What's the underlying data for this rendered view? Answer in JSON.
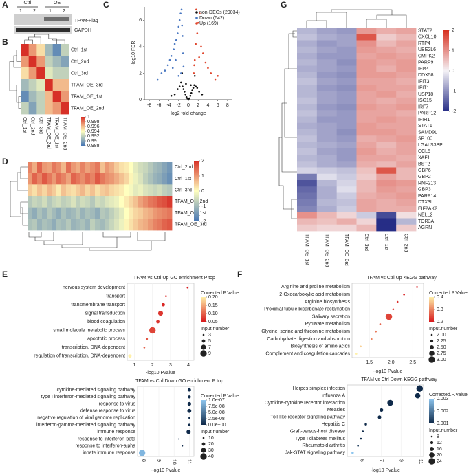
{
  "panel_labels": [
    "A",
    "B",
    "C",
    "D",
    "E",
    "F",
    "G"
  ],
  "blot": {
    "groups": [
      "Ctrl",
      "OE"
    ],
    "lanes": [
      "1",
      "2",
      "1",
      "2"
    ],
    "bands": [
      "TFAM-Flag",
      "GAPDH"
    ]
  },
  "chart_data": [
    {
      "type": "heatmap",
      "rows": [
        "Ctrl_1st",
        "Ctrl_2nd",
        "Ctrl_3rd",
        "TFAM_OE_3rd",
        "TFAM_OE_1st",
        "TFAM_OE_2nd"
      ],
      "columns": [
        "Ctrl_1st",
        "Ctrl_2nd",
        "Ctrl_3rd",
        "TFAM_OE_3rd",
        "TFAM_OE_1st",
        "TFAM_OE_2nd"
      ],
      "values": [
        [
          1,
          0.997,
          0.995,
          0.991,
          0.989,
          0.992
        ],
        [
          0.997,
          1,
          0.997,
          0.992,
          0.991,
          0.99
        ],
        [
          0.995,
          0.997,
          1,
          0.993,
          0.992,
          0.992
        ],
        [
          0.991,
          0.992,
          0.993,
          1,
          0.996,
          0.996
        ],
        [
          0.989,
          0.991,
          0.992,
          0.996,
          1,
          0.997
        ],
        [
          0.992,
          0.99,
          0.992,
          0.996,
          0.997,
          1
        ]
      ],
      "clim": [
        0.988,
        1
      ],
      "colorbar_ticks": [
        1,
        0.998,
        0.996,
        0.994,
        0.992,
        0.99,
        0.988
      ],
      "colors": [
        "#4575b4",
        "#ffffbf",
        "#d73027"
      ]
    },
    {
      "type": "scatter",
      "xlabel": "log2 fold change",
      "ylabel": "-log10 FDR",
      "xlim": [
        -9,
        9
      ],
      "ylim": [
        0,
        7
      ],
      "xticks": [
        -8,
        -6,
        -4,
        -2,
        0,
        2,
        4,
        6,
        8
      ],
      "yticks": [
        0,
        2,
        4,
        6
      ],
      "series": [
        {
          "name": "non-DEGs (29034)",
          "color": "#111111",
          "x": [
            -3.5,
            -2.8,
            -2.2,
            -1.8,
            -1.5,
            -1.2,
            -1.0,
            -0.8,
            -0.6,
            -0.4,
            -0.2,
            0,
            0.2,
            0.4,
            0.6,
            0.8,
            1.0,
            1.2,
            1.5,
            1.8,
            2.2,
            2.8,
            -0.5,
            0.5,
            -1.3,
            1.3
          ],
          "values": [
            0.3,
            0.4,
            0.8,
            1.0,
            1.3,
            1.0,
            0.8,
            0.6,
            0.4,
            0.2,
            0.1,
            0.05,
            0.1,
            0.3,
            0.5,
            0.7,
            0.9,
            1.1,
            1.0,
            0.9,
            0.6,
            0.4,
            1.2,
            1.1,
            2.0,
            1.8
          ]
        },
        {
          "name": "Down (642)",
          "color": "#4a78c2",
          "x": [
            -6.3,
            -5.5,
            -4.8,
            -4.2,
            -3.8,
            -3.5,
            -3.0,
            -2.8,
            -2.5,
            -2.2,
            -2.0,
            -1.8,
            -1.6,
            -1.4,
            -1.2,
            -1.1,
            -1.0,
            -2.6,
            -3.2,
            -1.5,
            -1.3,
            -2.0
          ],
          "values": [
            1.5,
            2.0,
            2.2,
            2.6,
            3.0,
            3.3,
            3.8,
            4.2,
            4.5,
            5.0,
            5.5,
            6.0,
            6.5,
            6.8,
            4.8,
            3.5,
            2.5,
            3.0,
            2.4,
            2.0,
            5.6,
            1.8
          ]
        },
        {
          "name": "Up (169)",
          "color": "#e0452c",
          "x": [
            1.1,
            1.3,
            1.5,
            1.8,
            2.0,
            2.3,
            2.6,
            3.0,
            3.5,
            4.0,
            4.6,
            5.5,
            6.0,
            1.6,
            2.2,
            1.2
          ],
          "values": [
            2.0,
            3.0,
            4.2,
            5.0,
            5.8,
            6.5,
            4.0,
            3.5,
            2.8,
            2.4,
            2.0,
            1.5,
            1.8,
            6.8,
            3.2,
            2.6
          ]
        }
      ]
    },
    {
      "type": "heatmap",
      "rows": [
        "Ctrl_2nd",
        "Ctrl_1st",
        "Ctrl_3rd",
        "TFAM_OE_2nd",
        "TFAM_OE_1st",
        "TFAM_OE_3rd"
      ],
      "columns": [
        null,
        null,
        null,
        null,
        null,
        null,
        null,
        null,
        null,
        null,
        null,
        null,
        null,
        null,
        null,
        null,
        null,
        null,
        null,
        null,
        null,
        null,
        null,
        null,
        null,
        null,
        null,
        null,
        null,
        null
      ],
      "values": [
        [
          1.2,
          0.8,
          1.5,
          1.0,
          0.9,
          1.3,
          1.1,
          0.7,
          1.4,
          1.0,
          0.8,
          1.2,
          0.9,
          1.1,
          1.3,
          0.6,
          1.0,
          0.8,
          0.5,
          0.3,
          0.2,
          0.0,
          -0.3,
          -0.5,
          -0.6,
          -0.8,
          -1.0,
          -1.1,
          -1.3,
          -1.5
        ],
        [
          1.0,
          1.5,
          1.2,
          1.6,
          1.3,
          1.0,
          1.4,
          1.2,
          0.9,
          1.5,
          1.3,
          1.1,
          1.4,
          1.2,
          1.6,
          1.3,
          1.1,
          1.0,
          0.8,
          0.6,
          0.4,
          0.1,
          -0.2,
          -0.4,
          -0.7,
          -0.9,
          -1.1,
          -1.2,
          -1.4,
          -1.6
        ],
        [
          0.5,
          0.3,
          0.6,
          0.4,
          0.7,
          0.5,
          0.2,
          0.6,
          0.4,
          0.3,
          0.5,
          0.7,
          0.4,
          0.6,
          0.3,
          0.5,
          0.6,
          0.4,
          0.3,
          0.2,
          0.0,
          -0.1,
          -0.3,
          -0.2,
          -0.4,
          -0.5,
          -0.6,
          -0.5,
          -0.7,
          -0.8
        ],
        [
          -0.8,
          -0.6,
          -0.7,
          -0.5,
          -0.8,
          -0.6,
          -0.5,
          -0.7,
          -0.6,
          -0.4,
          -0.7,
          -0.5,
          -0.6,
          -0.8,
          -0.5,
          -0.6,
          -0.4,
          -0.3,
          -0.2,
          0.0,
          0.2,
          0.4,
          0.6,
          0.9,
          1.1,
          1.3,
          1.4,
          1.6,
          1.7,
          1.9
        ],
        [
          -1.0,
          -1.2,
          -0.9,
          -1.1,
          -0.8,
          -1.0,
          -1.2,
          -0.9,
          -1.1,
          -1.0,
          -0.8,
          -1.1,
          -0.9,
          -1.0,
          -1.2,
          -0.8,
          -0.9,
          -0.7,
          -0.5,
          -0.3,
          0.0,
          0.2,
          0.4,
          0.5,
          0.7,
          0.8,
          1.0,
          1.1,
          1.2,
          1.3
        ],
        [
          -0.9,
          -0.8,
          -1.1,
          -0.9,
          -1.0,
          -1.2,
          -0.9,
          -1.0,
          -0.8,
          -1.1,
          -1.0,
          -0.9,
          -1.1,
          -0.7,
          -0.9,
          -1.0,
          -0.8,
          -0.6,
          -0.4,
          -0.2,
          0.1,
          0.3,
          0.5,
          0.7,
          0.8,
          1.0,
          1.2,
          1.3,
          1.5,
          1.6
        ]
      ],
      "clim": [
        -2,
        2
      ],
      "colorbar_ticks": [
        2,
        1,
        0,
        -1,
        -2
      ],
      "colors": [
        "#4575b4",
        "#ffffbf",
        "#d73027"
      ]
    },
    {
      "type": "heatmap",
      "rows": [
        "STAT2",
        "CXCL10",
        "RTP4",
        "UBE2L6",
        "CMPK2",
        "PARP9",
        "IFI44",
        "DDX58",
        "IFIT3",
        "IFIT1",
        "USP18",
        "ISG15",
        "IRF7",
        "PARP12",
        "IFIH1",
        "STAT1",
        "SAMD9L",
        "SP100",
        "LGALS3BP",
        "CCL5",
        "XAF1",
        "BST2",
        "GBP6",
        "GBP2",
        "RNF213",
        "GBP3",
        "PARP14",
        "DTX3L",
        "EIF2AK2",
        "NELL2",
        "TOR3A",
        "AGRN"
      ],
      "columns": [
        "TFAM_OE_1st",
        "TFAM_OE_2nd",
        "TFAM_OE_3rd",
        "Ctrl_3rd",
        "Ctrl_1st",
        "Ctrl_2nd"
      ],
      "values": [
        [
          -0.6,
          -0.8,
          -0.9,
          0.9,
          0.7,
          0.8
        ],
        [
          -0.5,
          -0.7,
          -0.8,
          1.6,
          0.4,
          0.6
        ],
        [
          -0.7,
          -0.9,
          -0.8,
          1.0,
          0.6,
          0.8
        ],
        [
          -0.6,
          -0.8,
          -0.9,
          0.9,
          0.8,
          0.7
        ],
        [
          -0.7,
          -0.9,
          -0.9,
          0.8,
          0.9,
          0.8
        ],
        [
          -0.6,
          -0.8,
          -1.0,
          0.9,
          0.8,
          0.9
        ],
        [
          -0.7,
          -0.8,
          -0.9,
          0.9,
          0.7,
          0.9
        ],
        [
          -0.6,
          -0.9,
          -1.0,
          0.9,
          0.9,
          0.8
        ],
        [
          -0.5,
          -0.8,
          -0.9,
          0.8,
          0.8,
          0.7
        ],
        [
          -0.6,
          -0.9,
          -1.0,
          0.9,
          0.8,
          0.8
        ],
        [
          -0.6,
          -0.8,
          -0.9,
          0.8,
          0.9,
          0.7
        ],
        [
          -0.5,
          -0.8,
          -0.9,
          0.8,
          0.7,
          0.8
        ],
        [
          -0.6,
          -0.9,
          -1.0,
          0.9,
          0.8,
          0.9
        ],
        [
          -0.5,
          -0.8,
          -0.9,
          0.8,
          0.8,
          0.7
        ],
        [
          -0.6,
          -0.9,
          -0.9,
          0.8,
          0.9,
          0.8
        ],
        [
          -0.7,
          -0.8,
          -0.9,
          0.9,
          0.8,
          0.8
        ],
        [
          -0.6,
          -0.8,
          -1.0,
          0.9,
          0.9,
          0.8
        ],
        [
          -0.5,
          -0.8,
          -0.9,
          0.7,
          0.8,
          0.9
        ],
        [
          -0.6,
          -0.7,
          -0.8,
          0.8,
          0.6,
          0.8
        ],
        [
          -0.5,
          -0.8,
          -0.9,
          0.9,
          0.7,
          0.8
        ],
        [
          -0.6,
          -0.7,
          -0.9,
          0.8,
          0.8,
          0.7
        ],
        [
          -0.5,
          -0.7,
          -0.8,
          0.7,
          0.6,
          0.8
        ],
        [
          -0.3,
          -0.4,
          -0.5,
          0.5,
          1.6,
          0.6
        ],
        [
          -1.2,
          -0.2,
          -0.4,
          0.4,
          0.8,
          0.6
        ],
        [
          -1.6,
          -0.6,
          -0.3,
          0.6,
          1.0,
          0.9
        ],
        [
          -1.4,
          -0.7,
          -0.2,
          0.6,
          0.9,
          0.8
        ],
        [
          -1.3,
          -0.7,
          -0.4,
          0.7,
          0.8,
          0.9
        ],
        [
          -1.2,
          -0.6,
          -0.5,
          0.8,
          0.7,
          0.8
        ],
        [
          -1.1,
          -0.7,
          -0.4,
          0.8,
          0.7,
          0.7
        ],
        [
          1.0,
          0.6,
          0.3,
          -0.4,
          -1.7,
          0.2
        ],
        [
          0.6,
          0.5,
          0.7,
          0.3,
          -2.0,
          -0.6
        ],
        [
          0.4,
          0.3,
          0.3,
          0.6,
          -2.0,
          0.4
        ]
      ],
      "clim": [
        -2,
        2
      ],
      "colorbar_ticks": [
        2,
        1,
        0,
        -1,
        -2
      ],
      "colors": [
        "#262d86",
        "#f4f2f6",
        "#d7301f"
      ]
    },
    {
      "type": "dot",
      "title": "TFAM vs Ctrl Up GO enrichment P top",
      "xlabel": "-log10 Pvalue",
      "categories": [
        "nervous system development",
        "transport",
        "transmembrane transport",
        "signal transduction",
        "blood coagulation",
        "small molecule metabolic process",
        "apoptotic process",
        "transcription, DNA-dependent",
        "regulation of transcription, DNA-dependent"
      ],
      "values": [
        3.95,
        2.75,
        2.6,
        2.45,
        2.3,
        2.0,
        1.7,
        1.55,
        0.75
      ],
      "sizes": [
        3,
        3,
        5,
        7,
        5,
        9,
        3,
        3,
        5
      ],
      "padj": [
        0.03,
        0.06,
        0.06,
        0.07,
        0.07,
        0.08,
        0.09,
        0.1,
        0.2
      ],
      "xlim": [
        0.6,
        4.3
      ],
      "xticks": [
        1,
        2,
        3,
        4
      ],
      "color_title": "Corrected.P.Value",
      "color_ticks": [
        {
          "value": 0.2,
          "label": "0.20"
        },
        0.15,
        {
          "value": 0.1,
          "label": "0.10"
        },
        0.05
      ],
      "size_title": "Input.number",
      "size_ticks": [
        3,
        5,
        7,
        9
      ],
      "colors": [
        "#d7191c",
        "#fff0a8"
      ]
    },
    {
      "type": "dot",
      "title": "TFAM vs Ctrl Down GO enrichment P top",
      "xlabel": "-log10 Pvalue",
      "categories": [
        "cytokine-mediated signaling pathway",
        "type I interferon-mediated signaling pathway",
        "response to virus",
        "defense response to virus",
        "negative regulation of viral genome replication",
        "interferon-gamma-mediated signaling pathway",
        "immune response",
        "response to interferon-beta",
        "response to interferon-alpha",
        "innate immune response"
      ],
      "label_colors": [
        "#2a7ab8",
        "#2a7ab8",
        "#2a7ab8",
        "#2a7ab8",
        "#222222",
        "#2a7ab8",
        "#2a7ab8",
        "#2a7ab8",
        "#2a7ab8",
        "#2a7ab8"
      ],
      "values": [
        11.0,
        11.0,
        11.0,
        11.0,
        11.0,
        11.0,
        10.95,
        10.3,
        10.55,
        7.9
      ],
      "sizes": [
        20,
        18,
        22,
        24,
        10,
        14,
        26,
        6,
        5,
        40
      ],
      "padj": [
        1e-10,
        1e-10,
        1e-10,
        1e-10,
        1e-10,
        1e-10,
        1e-10,
        1e-09,
        5e-10,
        9e-08
      ],
      "xlim": [
        7.6,
        11.3
      ],
      "xticks": [
        8,
        9,
        10,
        11
      ],
      "color_title": "Corrected.P.Value",
      "color_ticks": [
        {
          "value": 1e-07,
          "label": "1.0e-07"
        },
        {
          "value": 7.5e-08,
          "label": "7.5e-08"
        },
        {
          "value": 5e-08,
          "label": "5.0e-08"
        },
        {
          "value": 2.5e-08,
          "label": "2.5e-08"
        },
        {
          "value": 0,
          "label": "0.0e+00"
        }
      ],
      "size_title": "Input.number",
      "size_ticks": [
        10,
        20,
        30,
        40
      ],
      "colors": [
        "#0f2a4a",
        "#8ec6ef"
      ]
    },
    {
      "type": "dot",
      "title": "TFAM vs Ctrl Up KEGG pathway",
      "xlabel": "-log10 Pvalue",
      "categories": [
        "Arginine and proline metabolism",
        "2-Oxocarboxylic acid metabolism",
        "Arginine biosynthesis",
        "Proximal tubule bicarbonate reclamation",
        "Salivary secretion",
        "Pyruvate metabolism",
        "Glycine, serine and threonine metabolism",
        "Carbohydrate digestion and absorption",
        "Biosynthesis of amino acids",
        "Complement and coagulation cascades"
      ],
      "values": [
        2.6,
        2.3,
        2.15,
        2.05,
        1.95,
        1.75,
        1.65,
        1.55,
        1.3,
        1.2
      ],
      "sizes": [
        2,
        2,
        2,
        2,
        3,
        2,
        2,
        2,
        2,
        2
      ],
      "padj": [
        0.15,
        0.2,
        0.22,
        0.23,
        0.24,
        0.27,
        0.29,
        0.3,
        0.37,
        0.42
      ],
      "xlim": [
        1.1,
        2.75
      ],
      "xticks": [
        1.5,
        {
          "value": 2,
          "label": "2.0"
        },
        2.5
      ],
      "color_title": "Corrected.P.Value",
      "color_ticks": [
        0.4,
        0.3,
        0.2
      ],
      "size_title": "Input.number",
      "size_ticks": [
        {
          "value": 2,
          "label": "2.00"
        },
        2.25,
        {
          "value": 2.5,
          "label": "2.50"
        },
        2.75,
        {
          "value": 3,
          "label": "3.00"
        }
      ],
      "colors": [
        "#d7191c",
        "#fff0a8"
      ]
    },
    {
      "type": "dot",
      "title": "TFAM vs Ctrl Down KEGG pathway",
      "xlabel": "-log10 Pvalue",
      "categories": [
        "Herpes simplex infection",
        "Influenza A",
        "Cytokine-cytokine receptor interaction",
        "Measles",
        "Toll-like receptor signaling pathway",
        "Hepatitis C",
        "Graft-versus-host disease",
        "Type I diabetes mellitus",
        "Rheumatoid arthritis",
        "Jak-STAT signaling pathway"
      ],
      "values": [
        10.9,
        10.7,
        7.9,
        7.0,
        6.8,
        5.4,
        5.1,
        4.9,
        4.6,
        4.05
      ],
      "sizes": [
        24,
        20,
        22,
        14,
        14,
        10,
        8,
        8,
        8,
        10
      ],
      "padj": [
        0.0001,
        0.0001,
        0.0002,
        0.0004,
        0.0005,
        0.0008,
        0.0009,
        0.001,
        0.0012,
        0.0035
      ],
      "xlim": [
        3.5,
        11.3
      ],
      "xticks": [
        5,
        7,
        9,
        11
      ],
      "color_title": "Corrected.P.Value",
      "color_ticks": [
        0.003,
        0.002,
        0.001
      ],
      "size_title": "Input.number",
      "size_ticks": [
        8,
        12,
        16,
        20,
        24
      ],
      "colors": [
        "#0f2a4a",
        "#8ec6ef"
      ]
    }
  ]
}
